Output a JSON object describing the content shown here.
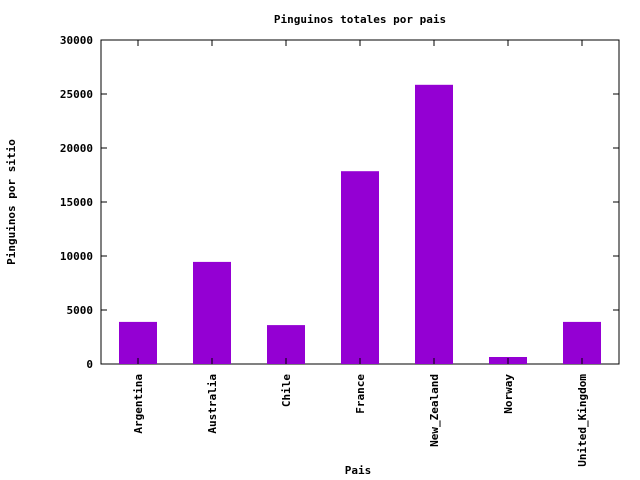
{
  "chart_data": {
    "type": "bar",
    "title": "Pinguinos totales por pais",
    "xlabel": "Pais",
    "ylabel": "Pinguinos por sitio",
    "categories": [
      "Argentina",
      "Australia",
      "Chile",
      "France",
      "New_Zealand",
      "Norway",
      "United_Kingdom"
    ],
    "values": [
      3900,
      9450,
      3600,
      17850,
      25850,
      650,
      3900
    ],
    "ylim": [
      0,
      30000
    ],
    "yticks": [
      0,
      5000,
      10000,
      15000,
      20000,
      25000,
      30000
    ],
    "bar_color": "#9400D3",
    "grid": false,
    "legend": "none"
  }
}
